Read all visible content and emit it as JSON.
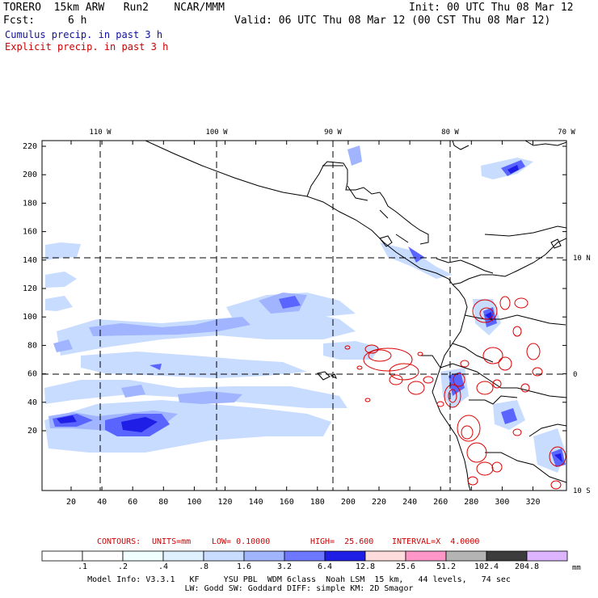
{
  "header": {
    "model": "TORERO  15km ARW   Run2    NCAR/MMM",
    "init": "Init: 00 UTC Thu 08 Mar 12",
    "fcst_label": "Fcst:",
    "fcst_value": "6 h",
    "valid": "Valid: 06 UTC Thu 08 Mar 12 (00 CST Thu 08 Mar 12)",
    "cumulus": "Cumulus precip. in past 3 h",
    "explicit": "Explicit precip. in past 3 h"
  },
  "colors": {
    "cumulus_text": "#1010a0",
    "explicit_text": "#cc0000",
    "contour": "#dd0000",
    "map_lines": "#000000"
  },
  "map": {
    "lon_labels": [
      "110 W",
      "100 W",
      "90 W",
      "80 W",
      "70 W"
    ],
    "lat_labels": [
      "10 N",
      "0",
      "10 S"
    ],
    "y_ticks": [
      "220",
      "200",
      "180",
      "160",
      "140",
      "120",
      "100",
      "80",
      "60",
      "40",
      "20"
    ],
    "x_ticks": [
      "20",
      "40",
      "60",
      "80",
      "100",
      "120",
      "140",
      "160",
      "180",
      "200",
      "220",
      "240",
      "260",
      "280",
      "300",
      "320"
    ]
  },
  "contours": {
    "label": "CONTOURS:",
    "units": "UNITS=mm",
    "low": "LOW= 0.10000",
    "high": "HIGH=  25.600",
    "interval": "INTERVAL=X  4.0000"
  },
  "colorbar": {
    "unit": "mm",
    "labels": [
      ".1",
      ".2",
      ".4",
      ".8",
      "1.6",
      "3.2",
      "6.4",
      "12.8",
      "25.6",
      "51.2",
      "102.4",
      "204.8"
    ],
    "colors": [
      "#ffffff",
      "#ffffff",
      "#f0ffff",
      "#e0f0ff",
      "#c8dcff",
      "#a0b4ff",
      "#6e78ff",
      "#1e1ee6",
      "#ffdcdc",
      "#ff96c8",
      "#b4b4b4",
      "#3c3c3c",
      "#dcb4ff"
    ]
  },
  "footer": {
    "line1": "Model Info: V3.3.1   KF     YSU PBL  WDM 6class  Noah LSM  15 km,   44 levels,   74 sec",
    "line2": "LW: Godd SW: Goddard DIFF: simple KM: 2D Smagor"
  }
}
